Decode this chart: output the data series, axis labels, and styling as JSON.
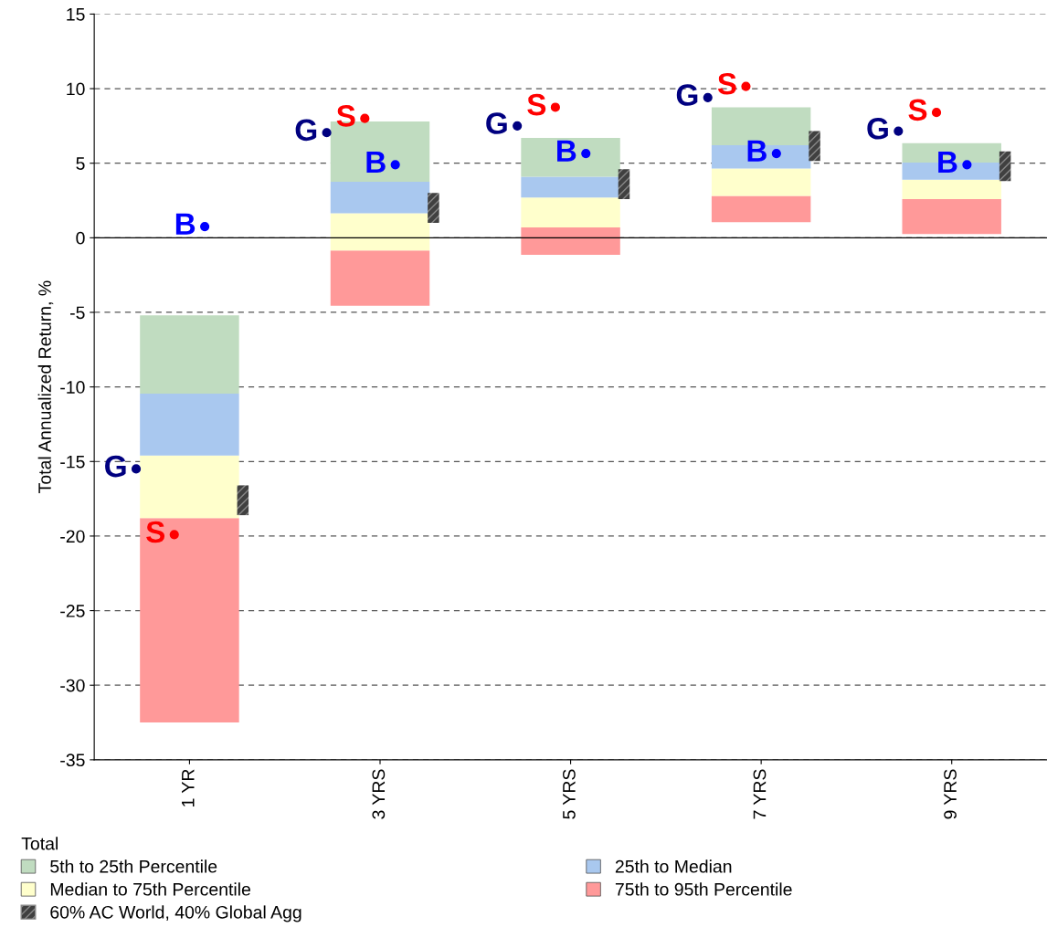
{
  "chart_data": {
    "type": "bar",
    "ylabel": "Total Annualized Return, %",
    "categories": [
      "1 YR",
      "3 YRS",
      "5 YRS",
      "7 YRS",
      "9 YRS"
    ],
    "series": [
      {
        "name": "75th to 95th Percentile",
        "color": "#ff9999",
        "base": [
          -32.5,
          -4.55,
          -1.15,
          1.05,
          0.25
        ],
        "values": [
          13.7,
          3.7,
          1.85,
          1.75,
          2.35
        ]
      },
      {
        "name": "Median to 75th Percentile",
        "color": "#ffffcc",
        "base": [
          -18.8,
          -0.85,
          0.7,
          2.8,
          2.6
        ],
        "values": [
          4.2,
          2.5,
          2.0,
          1.85,
          1.3
        ]
      },
      {
        "name": "25th to Median",
        "color": "#a9c8ef",
        "base": [
          -14.6,
          1.65,
          2.7,
          4.65,
          3.9
        ],
        "values": [
          4.15,
          2.1,
          1.4,
          1.55,
          1.15
        ]
      },
      {
        "name": "5th to 25th Percentile",
        "color": "#c0dcc0",
        "base": [
          -10.45,
          3.75,
          4.1,
          6.2,
          5.05
        ],
        "values": [
          5.25,
          4.05,
          2.6,
          2.55,
          1.3
        ]
      },
      {
        "type": "scatter",
        "marker": "circle",
        "name": "G",
        "color": "#000080",
        "values": [
          -15.5,
          7.05,
          7.5,
          9.4,
          7.15
        ]
      },
      {
        "type": "scatter",
        "marker": "circle",
        "name": "S",
        "color": "#ff0000",
        "values": [
          -19.9,
          8.0,
          8.75,
          10.15,
          8.4
        ]
      },
      {
        "type": "scatter",
        "marker": "circle",
        "name": "B",
        "color": "#0000ff",
        "values": [
          0.75,
          4.9,
          5.65,
          5.65,
          4.9
        ]
      },
      {
        "type": "scatter",
        "marker": "square",
        "name": "60% AC World, 40% Global Agg",
        "color": "#404040",
        "values": [
          -17.6,
          2.0,
          3.6,
          6.15,
          4.8
        ]
      }
    ],
    "legend_title": "Total",
    "legend": "bottom",
    "ylim": [
      -35,
      15
    ],
    "yticks": [
      -35,
      -30,
      -25,
      -20,
      -15,
      -10,
      -5,
      0,
      5,
      10,
      15
    ],
    "grid": "y",
    "ref_lines": [
      {
        "axis": "y",
        "value": 0,
        "color": "#000000",
        "line_style": "solid"
      }
    ]
  }
}
